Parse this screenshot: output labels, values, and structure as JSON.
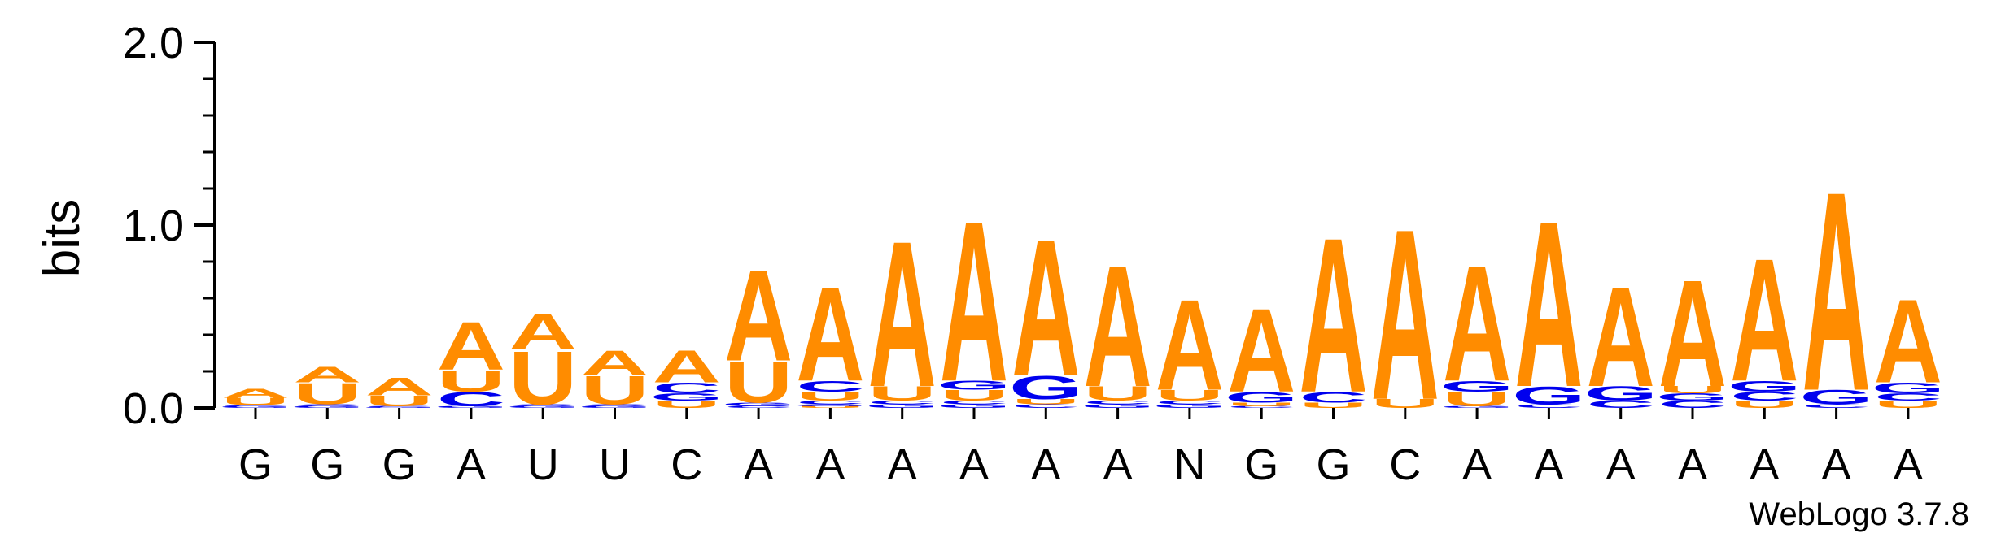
{
  "chart_data": {
    "type": "sequence_logo",
    "ylabel": "bits",
    "ylim": [
      0,
      2.0
    ],
    "yticks": [
      "0.0",
      "1.0",
      "2.0"
    ],
    "colors": {
      "A": "#ff8c00",
      "U": "#ff8c00",
      "G": "#0000ee",
      "C": "#0000ee"
    },
    "credit": "WebLogo 3.7.8",
    "positions": [
      {
        "label": "G",
        "stack": [
          [
            "G",
            0.01
          ],
          [
            "C",
            0.005
          ],
          [
            "U",
            0.04
          ],
          [
            "A",
            0.05
          ]
        ]
      },
      {
        "label": "G",
        "stack": [
          [
            "G",
            0.01
          ],
          [
            "C",
            0.01
          ],
          [
            "U",
            0.12
          ],
          [
            "A",
            0.09
          ]
        ]
      },
      {
        "label": "G",
        "stack": [
          [
            "G",
            0.005
          ],
          [
            "C",
            0.005
          ],
          [
            "U",
            0.06
          ],
          [
            "A",
            0.1
          ]
        ]
      },
      {
        "label": "A",
        "stack": [
          [
            "G",
            0.01
          ],
          [
            "C",
            0.08
          ],
          [
            "U",
            0.12
          ],
          [
            "A",
            0.27
          ]
        ]
      },
      {
        "label": "U",
        "stack": [
          [
            "G",
            0.01
          ],
          [
            "C",
            0.01
          ],
          [
            "U",
            0.3
          ],
          [
            "A",
            0.2
          ]
        ]
      },
      {
        "label": "U",
        "stack": [
          [
            "G",
            0.01
          ],
          [
            "C",
            0.01
          ],
          [
            "U",
            0.16
          ],
          [
            "A",
            0.14
          ]
        ]
      },
      {
        "label": "C",
        "stack": [
          [
            "U",
            0.04
          ],
          [
            "G",
            0.04
          ],
          [
            "C",
            0.06
          ],
          [
            "A",
            0.18
          ]
        ]
      },
      {
        "label": "A",
        "stack": [
          [
            "C",
            0.01
          ],
          [
            "G",
            0.02
          ],
          [
            "U",
            0.23
          ],
          [
            "A",
            0.51
          ]
        ]
      },
      {
        "label": "A",
        "stack": [
          [
            "U",
            0.01
          ],
          [
            "G",
            0.01
          ],
          [
            "C",
            0.02
          ],
          [
            "U",
            0.05
          ],
          [
            "C",
            0.06
          ],
          [
            "A",
            0.53
          ]
        ]
      },
      {
        "label": "A",
        "stack": [
          [
            "G",
            0.02
          ],
          [
            "C",
            0.02
          ],
          [
            "U",
            0.08
          ],
          [
            "A",
            0.82
          ]
        ]
      },
      {
        "label": "A",
        "stack": [
          [
            "G",
            0.02
          ],
          [
            "C",
            0.02
          ],
          [
            "U",
            0.06
          ],
          [
            "G",
            0.05
          ],
          [
            "A",
            0.9
          ]
        ]
      },
      {
        "label": "A",
        "stack": [
          [
            "C",
            0.02
          ],
          [
            "U",
            0.03
          ],
          [
            "G",
            0.13
          ],
          [
            "A",
            0.77
          ]
        ]
      },
      {
        "label": "A",
        "stack": [
          [
            "G",
            0.02
          ],
          [
            "C",
            0.02
          ],
          [
            "U",
            0.08
          ],
          [
            "A",
            0.68
          ]
        ]
      },
      {
        "label": "N",
        "stack": [
          [
            "G",
            0.02
          ],
          [
            "C",
            0.02
          ],
          [
            "U",
            0.06
          ],
          [
            "A",
            0.51
          ]
        ]
      },
      {
        "label": "G",
        "stack": [
          [
            "C",
            0.01
          ],
          [
            "U",
            0.02
          ],
          [
            "G",
            0.06
          ],
          [
            "A",
            0.47
          ]
        ]
      },
      {
        "label": "G",
        "stack": [
          [
            "U",
            0.03
          ],
          [
            "C",
            0.06
          ],
          [
            "A",
            0.87
          ]
        ]
      },
      {
        "label": "C",
        "stack": [
          [
            "U",
            0.05
          ],
          [
            "A",
            0.96
          ]
        ]
      },
      {
        "label": "A",
        "stack": [
          [
            "G",
            0.01
          ],
          [
            "U",
            0.08
          ],
          [
            "G",
            0.06
          ],
          [
            "A",
            0.65
          ]
        ]
      },
      {
        "label": "A",
        "stack": [
          [
            "C",
            0.02
          ],
          [
            "G",
            0.1
          ],
          [
            "A",
            0.93
          ]
        ]
      },
      {
        "label": "A",
        "stack": [
          [
            "C",
            0.04
          ],
          [
            "G",
            0.08
          ],
          [
            "A",
            0.56
          ]
        ]
      },
      {
        "label": "A",
        "stack": [
          [
            "C",
            0.04
          ],
          [
            "G",
            0.04
          ],
          [
            "U",
            0.04
          ],
          [
            "A",
            0.6
          ]
        ]
      },
      {
        "label": "A",
        "stack": [
          [
            "U",
            0.04
          ],
          [
            "C",
            0.05
          ],
          [
            "G",
            0.06
          ],
          [
            "A",
            0.69
          ]
        ]
      },
      {
        "label": "A",
        "stack": [
          [
            "C",
            0.02
          ],
          [
            "G",
            0.08
          ],
          [
            "A",
            1.12
          ]
        ]
      },
      {
        "label": "A",
        "stack": [
          [
            "U",
            0.04
          ],
          [
            "C",
            0.04
          ],
          [
            "G",
            0.06
          ],
          [
            "A",
            0.47
          ]
        ]
      }
    ]
  }
}
